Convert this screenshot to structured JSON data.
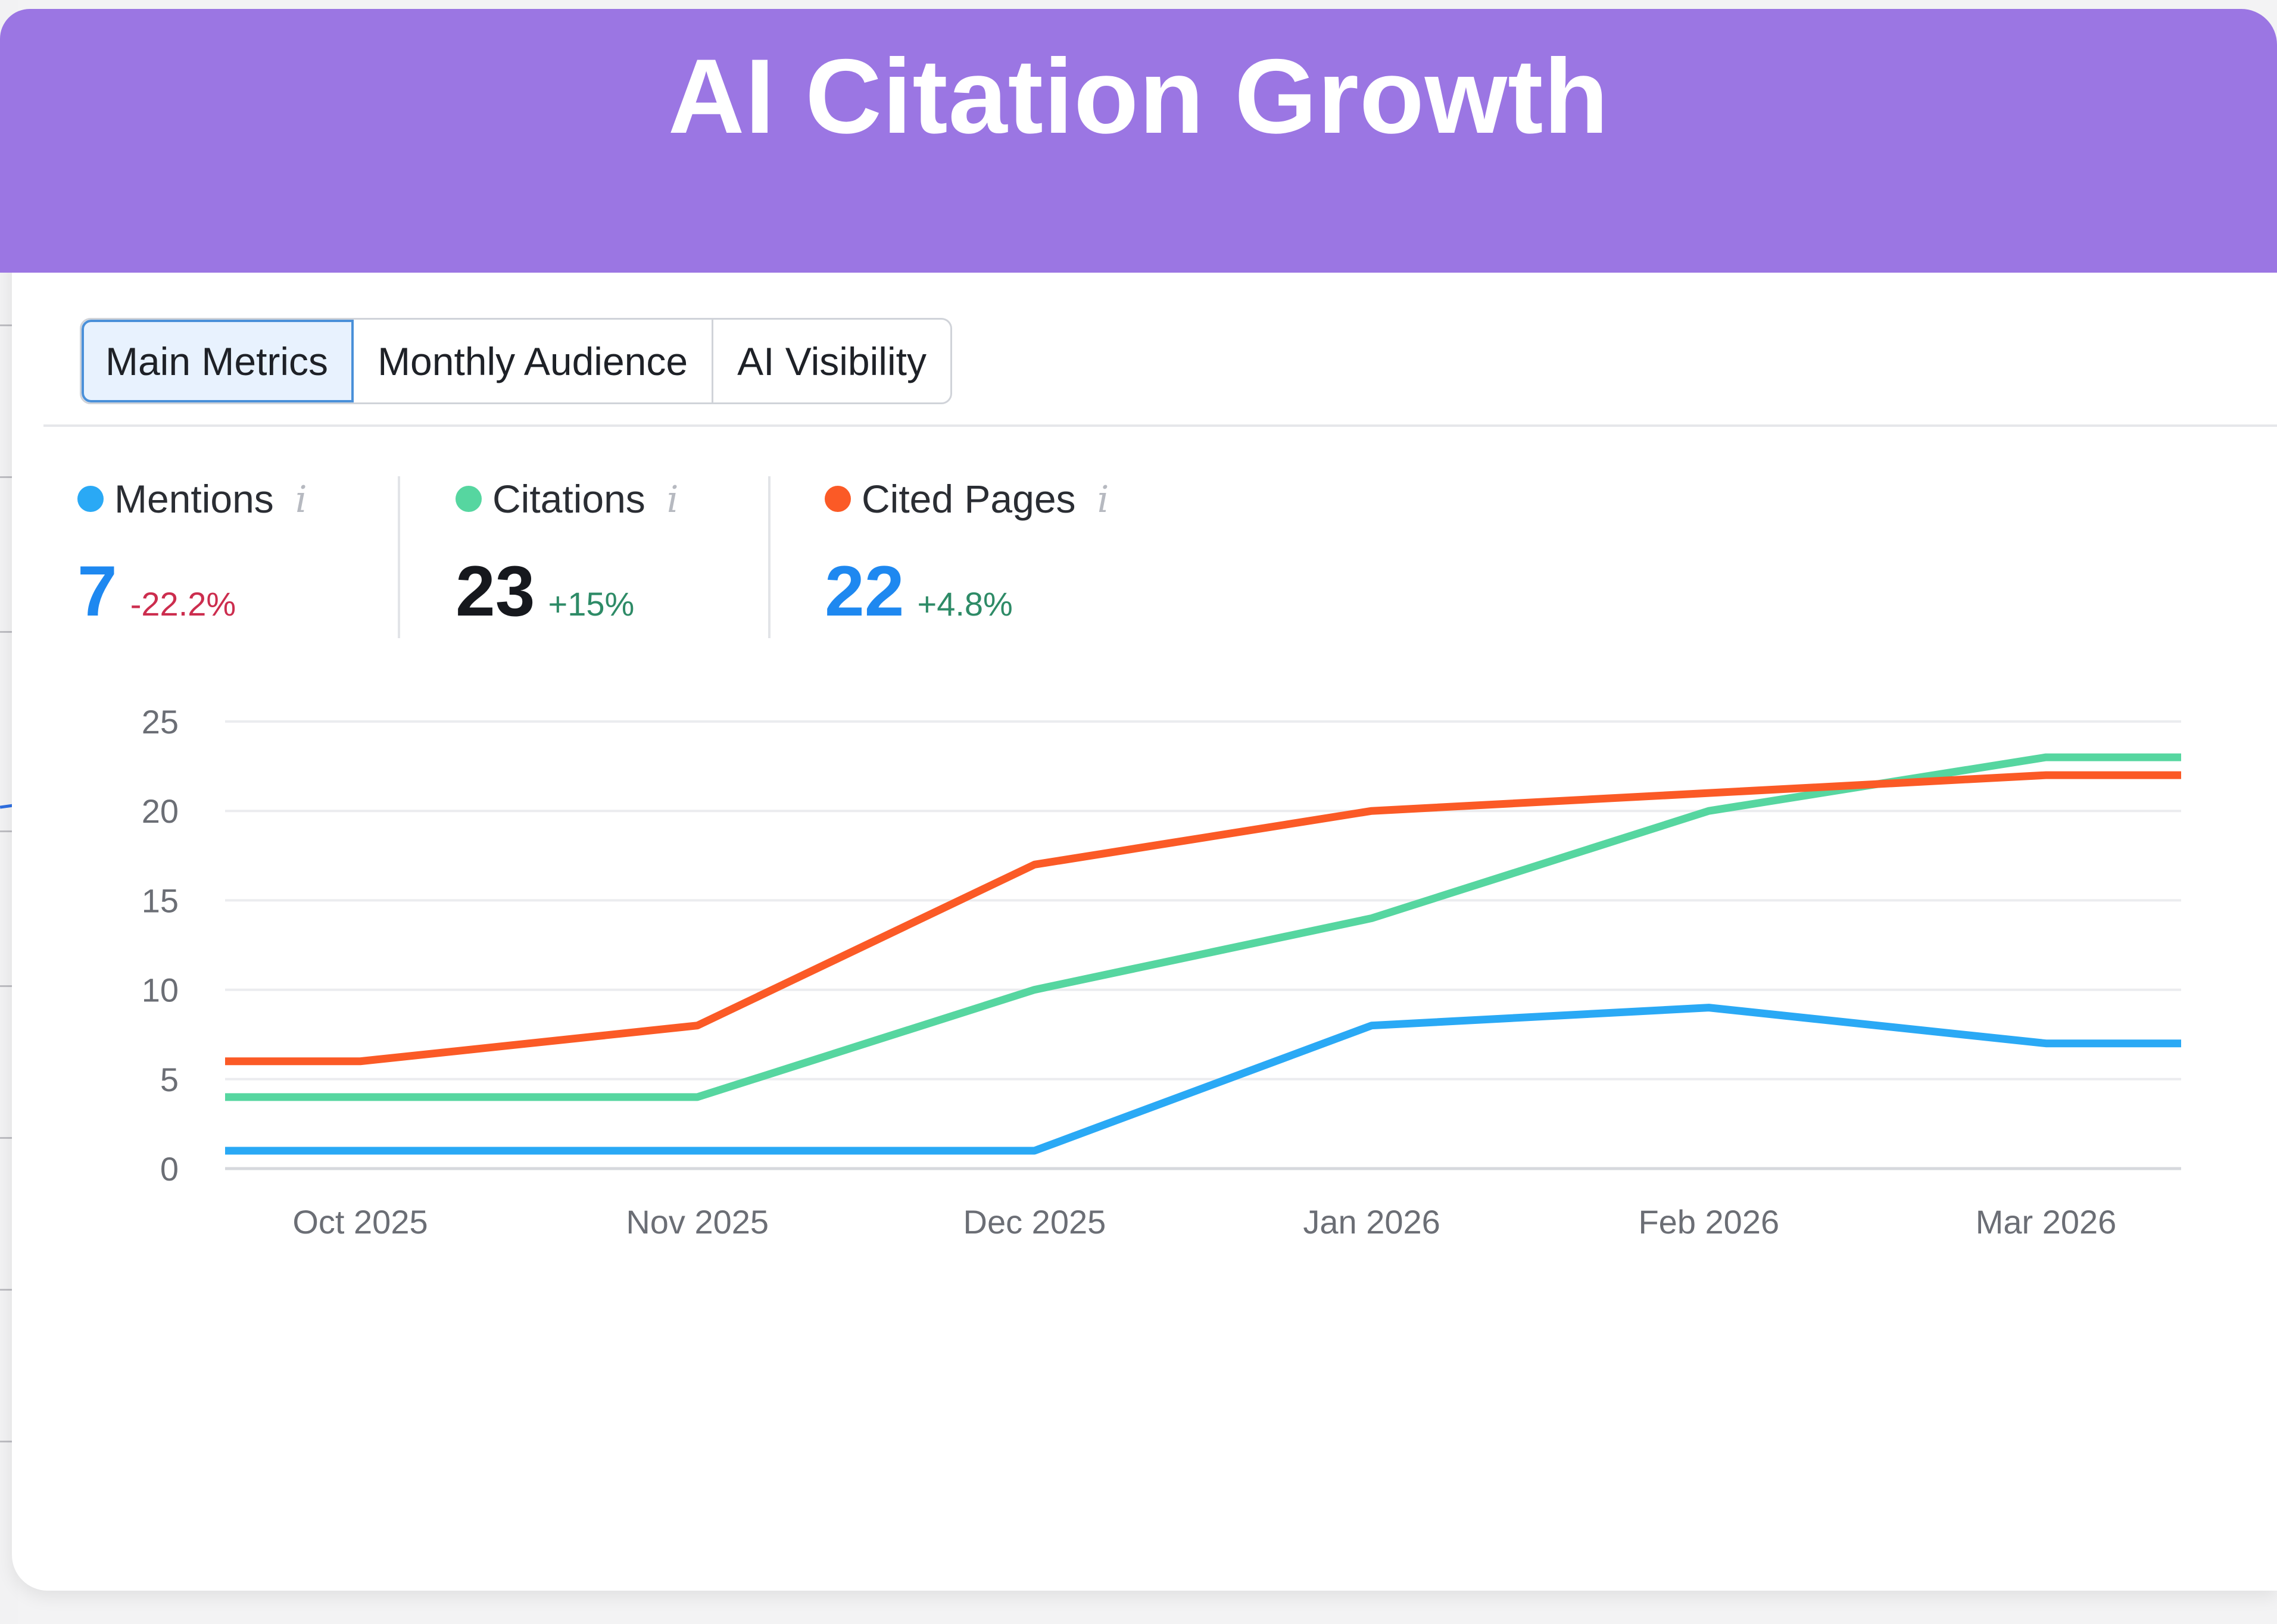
{
  "banner": {
    "title": "AI Citation Growth",
    "color": "#9b76e3"
  },
  "tabs": [
    {
      "label": "Main Metrics",
      "active": true
    },
    {
      "label": "Monthly Audience",
      "active": false
    },
    {
      "label": "AI Visibility",
      "active": false
    }
  ],
  "metrics": [
    {
      "label": "Mentions",
      "value": "7",
      "delta": "-22.2%",
      "dot_color": "#2aa9f5",
      "value_color": "#1e88f0",
      "delta_color": "#cc2d4e",
      "info_icon": "info-icon"
    },
    {
      "label": "Citations",
      "value": "23",
      "delta": "+15%",
      "dot_color": "#56d6a0",
      "value_color": "#16181d",
      "delta_color": "#2e8b67",
      "info_icon": "info-icon"
    },
    {
      "label": "Cited Pages",
      "value": "22",
      "delta": "+4.8%",
      "dot_color": "#fb5a26",
      "value_color": "#1e88f0",
      "delta_color": "#2e8b67",
      "info_icon": "info-icon"
    }
  ],
  "chart_data": {
    "type": "line",
    "title": "",
    "xlabel": "",
    "ylabel": "",
    "categories": [
      "Oct 2025",
      "Nov 2025",
      "Dec 2025",
      "Jan 2026",
      "Feb 2026",
      "Mar 2026"
    ],
    "x_edges_note": "lines extend flat from plot start to Oct and from Mar to plot end",
    "ylim": [
      0,
      25
    ],
    "yticks": [
      0,
      5,
      10,
      15,
      20,
      25
    ],
    "grid": true,
    "legend": "top (metric cards)",
    "series": [
      {
        "name": "Mentions",
        "color": "#2aa9f5",
        "values": [
          1,
          1,
          1,
          8,
          9,
          7
        ],
        "start_value": 1,
        "end_value": 7
      },
      {
        "name": "Citations",
        "color": "#56d6a0",
        "values": [
          4,
          4,
          10,
          14,
          20,
          23
        ],
        "start_value": 4,
        "end_value": 23
      },
      {
        "name": "Cited Pages",
        "color": "#fb5a26",
        "values": [
          6,
          8,
          17,
          20,
          21,
          22
        ],
        "start_value": 6,
        "end_value": 22
      }
    ]
  }
}
